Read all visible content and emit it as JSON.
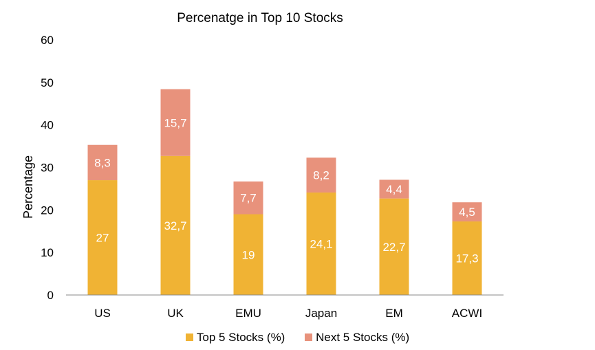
{
  "chart_data": {
    "type": "bar",
    "stacked": true,
    "title": "Percenatge in Top 10 Stocks",
    "xlabel": "",
    "ylabel": "Percentage",
    "ylim": [
      0,
      60
    ],
    "yticks": [
      "0",
      "10",
      "20",
      "30",
      "40",
      "50",
      "60"
    ],
    "categories": [
      "US",
      "UK",
      "EMU",
      "Japan",
      "EM",
      "ACWI"
    ],
    "series": [
      {
        "name": "Top 5 Stocks (%)",
        "color": "#F0B334",
        "values": [
          27,
          32.7,
          19,
          24.1,
          22.7,
          17.3
        ],
        "labels": [
          "27",
          "32,7",
          "19",
          "24,1",
          "22,7",
          "17,3"
        ]
      },
      {
        "name": "Next 5 Stocks (%)",
        "color": "#E8927C",
        "values": [
          8.3,
          15.7,
          7.7,
          8.2,
          4.4,
          4.5
        ],
        "labels": [
          "8,3",
          "15,7",
          "7,7",
          "8,2",
          "4,4",
          "4,5"
        ]
      }
    ],
    "grid": false,
    "legend_position": "bottom"
  }
}
